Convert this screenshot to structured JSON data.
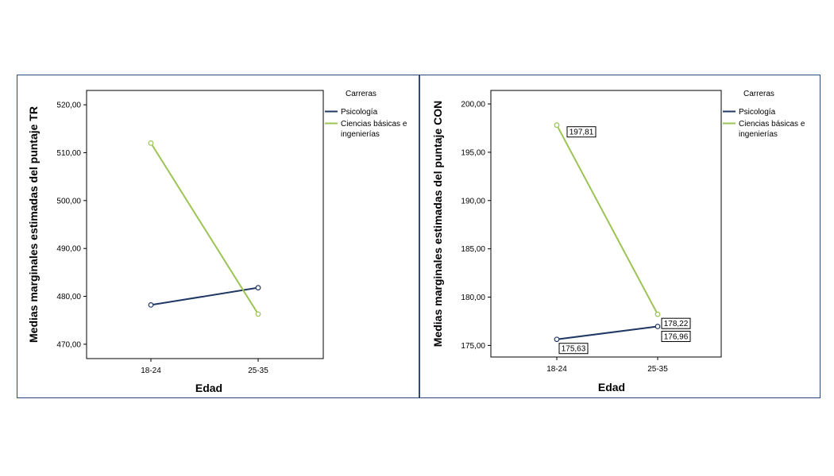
{
  "chart_data": [
    {
      "type": "line",
      "ylabel": "Medias marginales estimadas del puntaje TR",
      "xlabel": "Edad",
      "categories": [
        "18-24",
        "25-35"
      ],
      "ylim": [
        467,
        523
      ],
      "yticks": [
        470,
        480,
        490,
        500,
        510,
        520
      ],
      "ytick_labels": [
        "470,00",
        "480,00",
        "490,00",
        "500,00",
        "510,00",
        "520,00"
      ],
      "legend_title": "Carreras",
      "series": [
        {
          "name": "Psicología",
          "color": "#1f3864",
          "values": [
            478.2,
            481.8
          ],
          "labels": [
            "",
            ""
          ]
        },
        {
          "name": "Ciencias básicas e ingenierías",
          "name_lines": [
            "Ciencias básicas e",
            "ingenierías"
          ],
          "color": "#9bc454",
          "values": [
            512.0,
            476.3
          ],
          "labels": [
            "",
            ""
          ]
        }
      ]
    },
    {
      "type": "line",
      "ylabel": "Medias marginales estimadas del puntaje CON",
      "xlabel": "Edad",
      "categories": [
        "18-24",
        "25-35"
      ],
      "ylim": [
        173.8,
        201.4
      ],
      "yticks": [
        175,
        180,
        185,
        190,
        195,
        200
      ],
      "ytick_labels": [
        "175,00",
        "180,00",
        "185,00",
        "190,00",
        "195,00",
        "200,00"
      ],
      "legend_title": "Carreras",
      "series": [
        {
          "name": "Psicología",
          "color": "#1f3864",
          "values": [
            175.63,
            176.96
          ],
          "labels": [
            "175,63",
            "176,96"
          ]
        },
        {
          "name": "Ciencias básicas e ingenierías",
          "name_lines": [
            "Ciencias básicas e",
            "ingenierías"
          ],
          "color": "#9bc454",
          "values": [
            197.81,
            178.22
          ],
          "labels": [
            "197,81",
            "178,22"
          ]
        }
      ]
    }
  ]
}
